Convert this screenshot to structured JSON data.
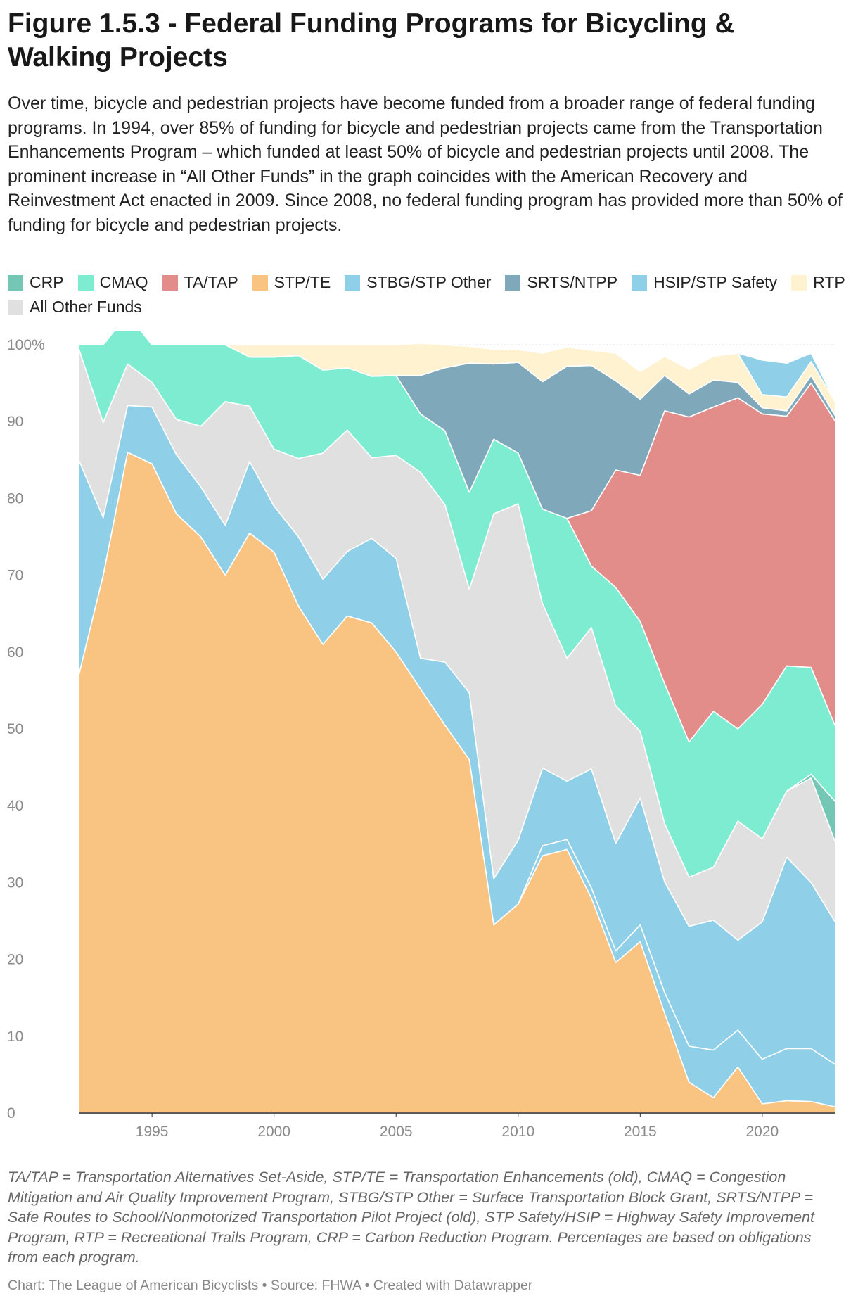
{
  "title": "Figure 1.5.3 - Federal Funding Programs for Bicycling & Walking Projects",
  "description": "Over time, bicycle and pedestrian projects have become funded from a broader range of federal funding programs. In 1994, over 85% of funding for bicycle and pedestrian projects came from the Transportation Enhancements Program – which funded at least 50% of bicycle and pedestrian projects until 2008. The prominent increase in “All Other Funds” in the graph coincides with the American Recovery and Reinvestment Act enacted in 2009. Since 2008, no federal funding program has provided more than 50% of funding for bicycle and pedestrian projects.",
  "notes": "TA/TAP = Transportation Alternatives Set-Aside, STP/TE = Transportation Enhancements (old), CMAQ = Congestion Mitigation and Air Quality Improvement Program, STBG/STP Other = Surface Transportation Block Grant, SRTS/NTPP = Safe Routes to School/Nonmotorized Transportation Pilot Project (old), STP Safety/HSIP = Highway Safety Improvement Program, RTP = Recreational Trails Program, CRP = Carbon Reduction Program. Percentages are based on obligations from each program.",
  "credit": "Chart: The League of American Bicyclists • Source: FHWA • Created with Datawrapper",
  "chart_data": {
    "type": "area",
    "stacked": true,
    "title": "Figure 1.5.3 - Federal Funding Programs for Bicycling & Walking Projects",
    "xlabel": "",
    "ylabel": "",
    "xlim": [
      1992,
      2023
    ],
    "ylim": [
      0,
      100
    ],
    "grid": true,
    "legend_position": "top",
    "x_ticks": [
      1995,
      2000,
      2005,
      2010,
      2015,
      2020
    ],
    "y_ticks": [
      0,
      10,
      20,
      30,
      40,
      50,
      60,
      70,
      80,
      90,
      100
    ],
    "y_tick_labels": [
      "0",
      "10",
      "20",
      "30",
      "40",
      "50",
      "60",
      "70",
      "80",
      "90",
      "100%"
    ],
    "x": [
      1992,
      1993,
      1994,
      1995,
      1996,
      1997,
      1998,
      1999,
      2000,
      2001,
      2002,
      2003,
      2004,
      2005,
      2006,
      2007,
      2008,
      2009,
      2010,
      2011,
      2012,
      2013,
      2014,
      2015,
      2016,
      2017,
      2018,
      2019,
      2020,
      2021,
      2022,
      2023
    ],
    "series": [
      {
        "name": "STP/TE",
        "color": "#f9c482",
        "values": [
          57,
          70,
          86,
          84.5,
          78,
          75,
          70,
          75.5,
          73,
          66,
          61,
          64.7,
          63.8,
          60,
          55.2,
          50.5,
          46,
          24.5,
          27.2,
          33.5,
          34.3,
          28,
          19.6,
          22.3,
          13,
          4,
          2,
          6,
          1.2,
          1.6,
          1.5,
          0.8
        ]
      },
      {
        "name": "STBG/STP Other",
        "color": "#8fd0e8",
        "values": [
          0,
          0,
          0,
          0,
          0,
          0,
          0,
          0,
          0,
          0,
          0,
          0,
          0,
          0,
          0,
          0,
          0,
          0,
          0,
          1.3,
          1.3,
          1.3,
          1.5,
          2.2,
          2.7,
          4.7,
          6.2,
          4.8,
          5.8,
          6.8,
          6.9,
          5.5
        ]
      },
      {
        "name": "HSIP/STP Safety",
        "color": "#8fd0e8",
        "values": [
          28,
          7.5,
          6.1,
          7.4,
          7.7,
          6.5,
          6.5,
          9.3,
          6,
          9,
          8.5,
          8.4,
          11,
          12.2,
          4,
          8.2,
          8.7,
          6,
          8.3,
          10.1,
          7.6,
          15.5,
          14,
          16.5,
          14.4,
          15.6,
          16.9,
          11.7,
          17.9,
          24.9,
          21.6,
          18.5
        ]
      },
      {
        "name": "All Other Funds",
        "color": "#e0e0e0",
        "values": [
          14.5,
          12.4,
          5.4,
          3.2,
          4.6,
          7.9,
          16.1,
          7.2,
          7.4,
          10.2,
          16.4,
          15.8,
          10.5,
          13.4,
          24.2,
          20.5,
          13.5,
          47.5,
          43.8,
          21.4,
          16,
          18.4,
          17.9,
          8.7,
          7.6,
          6.4,
          6.9,
          15.5,
          10.8,
          8.6,
          13.6,
          10.4
        ]
      },
      {
        "name": "CRP",
        "color": "#74c7b4",
        "values": [
          0,
          0,
          0,
          0,
          0,
          0,
          0,
          0,
          0,
          0,
          0,
          0,
          0,
          0,
          0,
          0,
          0,
          0,
          0,
          0,
          0,
          0,
          0,
          0,
          0,
          0,
          0,
          0,
          0,
          0,
          0.5,
          5.3
        ]
      },
      {
        "name": "CMAQ",
        "color": "#7eecd1",
        "values": [
          0.5,
          10.1,
          6.5,
          4.9,
          9.7,
          10.6,
          7.4,
          6.4,
          12,
          13.4,
          10.8,
          8.1,
          10.6,
          10.4,
          7.6,
          9.6,
          12.6,
          9.7,
          6.6,
          12.3,
          18.2,
          8,
          15.4,
          14.3,
          18.2,
          17.6,
          20.3,
          12,
          17.5,
          16.3,
          13.9,
          9.8
        ]
      },
      {
        "name": "TA/TAP",
        "color": "#e38d8b",
        "values": [
          0,
          0,
          0,
          0,
          0,
          0,
          0,
          0,
          0,
          0,
          0,
          0,
          0,
          0,
          0,
          0,
          0,
          0,
          0,
          0,
          0,
          7.2,
          15.3,
          19,
          35.5,
          42.3,
          39.6,
          43.1,
          37.8,
          32.5,
          37,
          39.7
        ]
      },
      {
        "name": "SRTS/NTPP",
        "color": "#80a8bb",
        "values": [
          0,
          0,
          0,
          0,
          0,
          0,
          0,
          0,
          0,
          0,
          0,
          0,
          0,
          0,
          5,
          8.2,
          16.8,
          9.8,
          11.8,
          16.6,
          19.8,
          18.9,
          11.6,
          9.9,
          4.6,
          3,
          3.5,
          2,
          0.8,
          0.7,
          1,
          0.7
        ]
      },
      {
        "name": "RTP",
        "color": "#fef2d0",
        "values": [
          0,
          0,
          0,
          0,
          0,
          0,
          0,
          1.6,
          1.6,
          1.4,
          3.3,
          3,
          4.1,
          4,
          4.2,
          3,
          2.2,
          1.9,
          1.7,
          3.7,
          2.5,
          2,
          3.6,
          3.6,
          2.5,
          3.2,
          3.1,
          3.8,
          1.7,
          1.8,
          1.8,
          1.8
        ]
      },
      {
        "name": "HSIP/STP Safety (upper)",
        "color": "#8fd0e8",
        "values": [
          0,
          0,
          0,
          0,
          0,
          0,
          0,
          0,
          0,
          0,
          0,
          0,
          0,
          0,
          0,
          0,
          0,
          0,
          0,
          0,
          0,
          0,
          0,
          0,
          0,
          0,
          0,
          0,
          4.5,
          4.4,
          1.1,
          0
        ]
      }
    ]
  },
  "legend": [
    {
      "label": "CRP",
      "color": "#74c7b4"
    },
    {
      "label": "CMAQ",
      "color": "#7eecd1"
    },
    {
      "label": "TA/TAP",
      "color": "#e38d8b"
    },
    {
      "label": "STP/TE",
      "color": "#f9c482"
    },
    {
      "label": "STBG/STP Other",
      "color": "#8fd0e8"
    },
    {
      "label": "SRTS/NTPP",
      "color": "#80a8bb"
    },
    {
      "label": "HSIP/STP Safety",
      "color": "#8fd0e8"
    },
    {
      "label": "RTP",
      "color": "#fef2d0"
    },
    {
      "label": "All Other Funds",
      "color": "#e0e0e0"
    }
  ]
}
